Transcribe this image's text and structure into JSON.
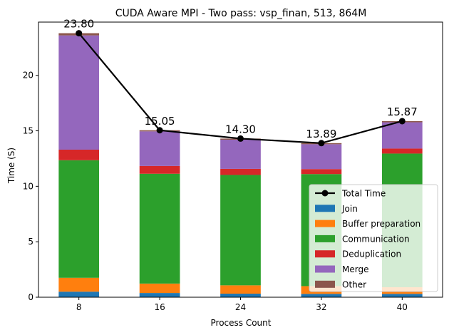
{
  "chart_data": {
    "type": "bar",
    "stacked": true,
    "title": "CUDA Aware MPI - Two pass: vsp_finan, 513, 864M",
    "xlabel": "Process Count",
    "ylabel": "Time (S)",
    "categories": [
      "8",
      "16",
      "24",
      "32",
      "40"
    ],
    "ylim": [
      0,
      24.8
    ],
    "yticks": [
      0,
      5,
      10,
      15,
      20
    ],
    "series": [
      {
        "name": "Join",
        "color": "#1f77b4",
        "values": [
          0.5,
          0.38,
          0.32,
          0.3,
          0.3
        ]
      },
      {
        "name": "Buffer preparation",
        "color": "#ff7f0e",
        "values": [
          1.25,
          0.85,
          0.75,
          0.7,
          0.6
        ]
      },
      {
        "name": "Communication",
        "color": "#2ca02c",
        "values": [
          10.6,
          9.9,
          9.95,
          10.1,
          12.05
        ]
      },
      {
        "name": "Deduplication",
        "color": "#d62728",
        "values": [
          0.95,
          0.7,
          0.55,
          0.45,
          0.45
        ]
      },
      {
        "name": "Merge",
        "color": "#9467bd",
        "values": [
          10.3,
          3.12,
          2.63,
          2.24,
          2.37
        ]
      },
      {
        "name": "Other",
        "color": "#8c564b",
        "values": [
          0.2,
          0.1,
          0.1,
          0.1,
          0.1
        ]
      }
    ],
    "line": {
      "name": "Total Time",
      "color": "#000000",
      "values": [
        23.8,
        15.05,
        14.3,
        13.89,
        15.87
      ],
      "labels": [
        "23.80",
        "15.05",
        "14.30",
        "13.89",
        "15.87"
      ]
    },
    "legend_position": "lower right"
  }
}
